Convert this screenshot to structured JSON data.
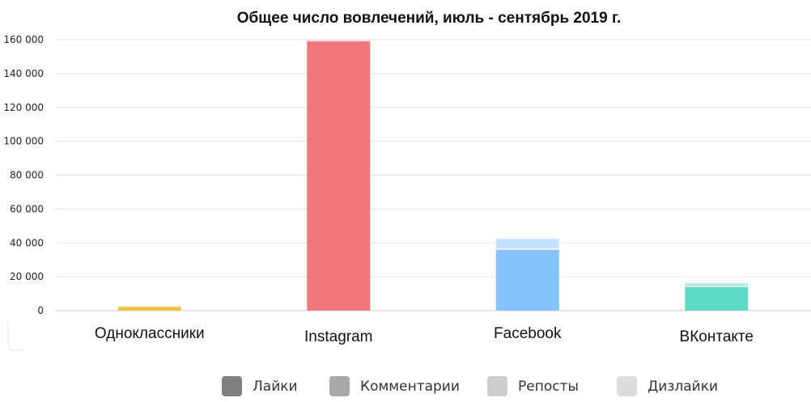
{
  "chart_data": {
    "type": "bar",
    "stacked": true,
    "title": "Общее число вовлечений, июль - сентябрь 2019 г.",
    "xlabel": "",
    "ylabel": "",
    "ylim": [
      0,
      160000
    ],
    "yticks": [
      0,
      20000,
      40000,
      60000,
      80000,
      100000,
      120000,
      140000,
      160000
    ],
    "ytick_labels": [
      "0",
      "20 000",
      "40 000",
      "60 000",
      "80 000",
      "100 000",
      "120 000",
      "140 000",
      "160 000"
    ],
    "categories": [
      "Одноклассники",
      "Instagram",
      "Facebook",
      "ВКонтакте"
    ],
    "category_colors": [
      "#f0bf3c",
      "#ef7679",
      "#87c3ff",
      "#5fd9c8"
    ],
    "category_light_colors": [
      "#f7dc98",
      "#f5b2b3",
      "#c4e1ff",
      "#b7ede4"
    ],
    "series": [
      {
        "name": "Лайки",
        "values": [
          2300,
          159000,
          36000,
          14000
        ]
      },
      {
        "name": "Комментарии",
        "values": [
          60,
          500,
          800,
          500
        ]
      },
      {
        "name": "Репосты",
        "values": [
          200,
          0,
          5500,
          1800
        ]
      },
      {
        "name": "Дизлайки",
        "values": [
          0,
          0,
          0,
          0
        ]
      }
    ],
    "legend": {
      "position": "bottom",
      "labels": [
        "Лайки",
        "Комментарии",
        "Репосты",
        "Дизлайки"
      ],
      "colors": [
        "#808080",
        "#a8a8a8",
        "#cccccc",
        "#dcdcdc"
      ]
    },
    "grid": true
  }
}
